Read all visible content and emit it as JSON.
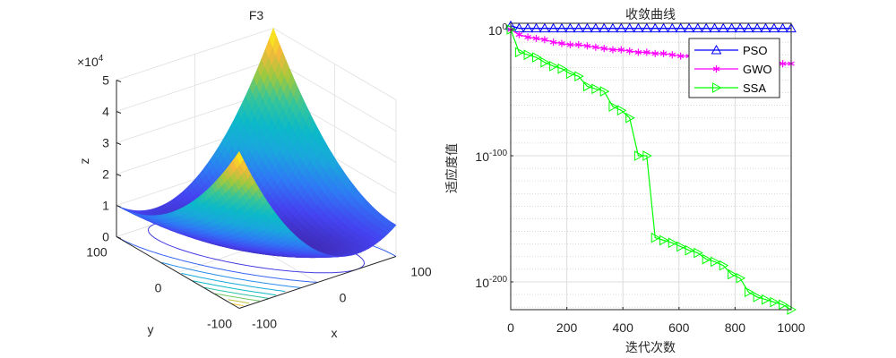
{
  "chart_data": [
    {
      "type": "surface",
      "title": "F3",
      "xlabel": "x",
      "ylabel": "y",
      "zlabel": "z",
      "z_exponent_label": "×10",
      "z_exponent": "4",
      "function": "z = x^2 + (x+y)^2",
      "xlim": [
        -100,
        100
      ],
      "ylim": [
        -100,
        100
      ],
      "zlim": [
        0,
        50000
      ],
      "xticks": [
        "-100",
        "0",
        "100"
      ],
      "yticks": [
        "-100",
        "0",
        "100"
      ],
      "zticks": [
        "0",
        "1",
        "2",
        "3",
        "4",
        "5"
      ],
      "contour_levels": [
        5000,
        10000,
        15000,
        20000,
        25000,
        30000,
        35000,
        40000,
        45000
      ],
      "view": {
        "azimuth": -37.5,
        "elevation": 30
      },
      "colormap": [
        "#3E26A8",
        "#4542F0",
        "#2E7BF5",
        "#1AA7DD",
        "#0CB9C8",
        "#36C59A",
        "#9DC93F",
        "#F5B93B",
        "#F9FB0E"
      ],
      "grid": true
    },
    {
      "type": "line",
      "title": "收敛曲线",
      "xlabel": "迭代次数",
      "ylabel": "适应度值",
      "yscale": "log",
      "xlim": [
        0,
        1000
      ],
      "ylim": [
        1e-222,
        100000.0
      ],
      "xticks": [
        "0",
        "200",
        "400",
        "600",
        "800",
        "1000"
      ],
      "yticks": [
        {
          "base": "10",
          "exp": "0",
          "value": 1
        },
        {
          "base": "10",
          "exp": "-100",
          "value": 1e-100
        },
        {
          "base": "10",
          "exp": "-200",
          "value": 1e-200
        }
      ],
      "grid": true,
      "legend_position": "top-right",
      "x": [
        0,
        30,
        61,
        91,
        121,
        152,
        182,
        212,
        242,
        273,
        303,
        333,
        364,
        394,
        424,
        455,
        485,
        515,
        545,
        576,
        606,
        636,
        667,
        697,
        727,
        758,
        788,
        818,
        848,
        879,
        909,
        939,
        970,
        1000
      ],
      "series": [
        {
          "name": "PSO",
          "color": "#0000FF",
          "marker": "triangle-up",
          "values": [
            1000.0,
            10.0,
            10.0,
            10.0,
            10.0,
            10.0,
            10.0,
            10.0,
            10.0,
            10.0,
            10.0,
            10.0,
            10.0,
            10.0,
            10.0,
            10.0,
            10.0,
            10.0,
            10.0,
            10.0,
            10.0,
            10.0,
            10.0,
            10.0,
            10.0,
            10.0,
            10.0,
            10.0,
            10.0,
            10.0,
            10.0,
            10.0,
            10.0,
            10.0
          ]
        },
        {
          "name": "GWO",
          "color": "#FF00FF",
          "marker": "asterisk",
          "values": [
            1.0,
            0.0001,
            1e-06,
            1e-07,
            1e-08,
            1e-10,
            1e-11,
            1e-12,
            1e-12,
            1e-13,
            1e-14,
            1e-15,
            1e-16,
            1e-16,
            1e-17,
            1e-18,
            1e-18,
            1e-19,
            1e-19,
            1e-20,
            1e-21,
            1e-21,
            1e-22,
            1e-22,
            1e-23,
            1e-23,
            1e-24,
            1e-24,
            1e-25,
            1e-25,
            1e-26,
            1e-26,
            1e-27,
            1e-27
          ]
        },
        {
          "name": "SSA",
          "color": "#00FF00",
          "marker": "triangle-right",
          "values": [
            1.0,
            1e-18,
            1e-20,
            1e-22,
            1e-26,
            1e-29,
            1e-31,
            1e-35,
            1e-37,
            1e-45,
            1e-47,
            1e-49,
            1e-61,
            1e-64,
            1e-70,
            1e-100,
            1e-100,
            1e-165,
            1e-167,
            1e-169,
            1e-172,
            1e-175,
            1e-177,
            1e-182,
            1e-184,
            1e-187,
            1e-194,
            1e-197,
            1e-208,
            1e-212,
            1e-214,
            1e-216,
            1e-218,
            1e-222
          ]
        }
      ]
    }
  ]
}
